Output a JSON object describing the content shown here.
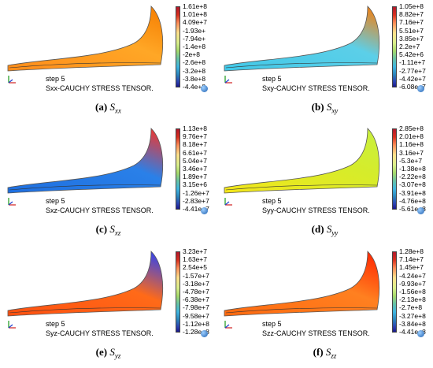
{
  "common": {
    "step": "step 5"
  },
  "panels": [
    {
      "id": "a",
      "label": "(a)",
      "symbol": "S",
      "subscript": "xx",
      "title": "Sxx-CAUCHY STRESS TENSOR.",
      "colors": {
        "root": "#ff8c1a",
        "mid": "#ffa726",
        "tip": "#f57c00"
      },
      "ticks": [
        "1.61e+8",
        "1.01e+8",
        "4.09e+7",
        "-1.93e+",
        "-7.94e+",
        "-1.4e+8",
        "-2e+8",
        "-2.6e+8",
        "-3.2e+8",
        "-3.8e+8",
        "-4.4e+8"
      ]
    },
    {
      "id": "b",
      "label": "(b)",
      "symbol": "S",
      "subscript": "xy",
      "title": "Sxy-CAUCHY STRESS TENSOR.",
      "colors": {
        "root": "#40c8e8",
        "mid": "#5ccfe8",
        "tip": "#ff7a00"
      },
      "ticks": [
        "1.05e+8",
        "8.82e+7",
        "7.16e+7",
        "5.51e+7",
        "3.85e+7",
        "2.2e+7",
        "5.42e+6",
        "-1.11e+7",
        "-2.77e+7",
        "-4.42e+7",
        "-6.08e+7"
      ]
    },
    {
      "id": "c",
      "label": "(c)",
      "symbol": "S",
      "subscript": "xz",
      "title": "Sxz-CAUCHY STRESS TENSOR.",
      "colors": {
        "root": "#1e6fe0",
        "mid": "#2a80e8",
        "tip": "#ff3020"
      },
      "ticks": [
        "1.13e+8",
        "9.76e+7",
        "8.18e+7",
        "6.61e+7",
        "5.04e+7",
        "3.46e+7",
        "1.89e+7",
        "3.15e+6",
        "-1.26e+7",
        "-2.83e+7",
        "-4.41e+7"
      ]
    },
    {
      "id": "d",
      "label": "(d)",
      "symbol": "S",
      "subscript": "yy",
      "title": "Syy-CAUCHY STRESS TENSOR.",
      "colors": {
        "root": "#f4e61a",
        "mid": "#d6ec2a",
        "tip": "#c8f040"
      },
      "ticks": [
        "2.85e+8",
        "2.01e+8",
        "1.16e+8",
        "3.16e+7",
        "-5.3e+7",
        "-1.38e+8",
        "-2.22e+8",
        "-3.07e+8",
        "-3.91e+8",
        "-4.76e+8",
        "-5.61e+8"
      ]
    },
    {
      "id": "e",
      "label": "(e)",
      "symbol": "S",
      "subscript": "yz",
      "title": "Syz-CAUCHY STRESS TENSOR.",
      "colors": {
        "root": "#ff5010",
        "mid": "#ff6a18",
        "tip": "#2040ff"
      },
      "ticks": [
        "3.23e+7",
        "1.63e+7",
        "2.54e+5",
        "-1.57e+7",
        "-3.18e+7",
        "-4.78e+7",
        "-6.38e+7",
        "-7.98e+7",
        "-9.58e+7",
        "-1.12e+8",
        "-1.28e+8"
      ]
    },
    {
      "id": "f",
      "label": "(f)",
      "symbol": "S",
      "subscript": "zz",
      "title": "Szz-CAUCHY STRESS TENSOR.",
      "colors": {
        "root": "#ff6a10",
        "mid": "#ff8020",
        "tip": "#ff2000"
      },
      "ticks": [
        "1.28e+8",
        "7.14e+7",
        "1.45e+7",
        "-4.24e+7",
        "-9.93e+7",
        "-1.56e+8",
        "-2.13e+8",
        "-2.7e+8",
        "-3.27e+8",
        "-3.84e+8",
        "-4.41e+8"
      ]
    }
  ]
}
